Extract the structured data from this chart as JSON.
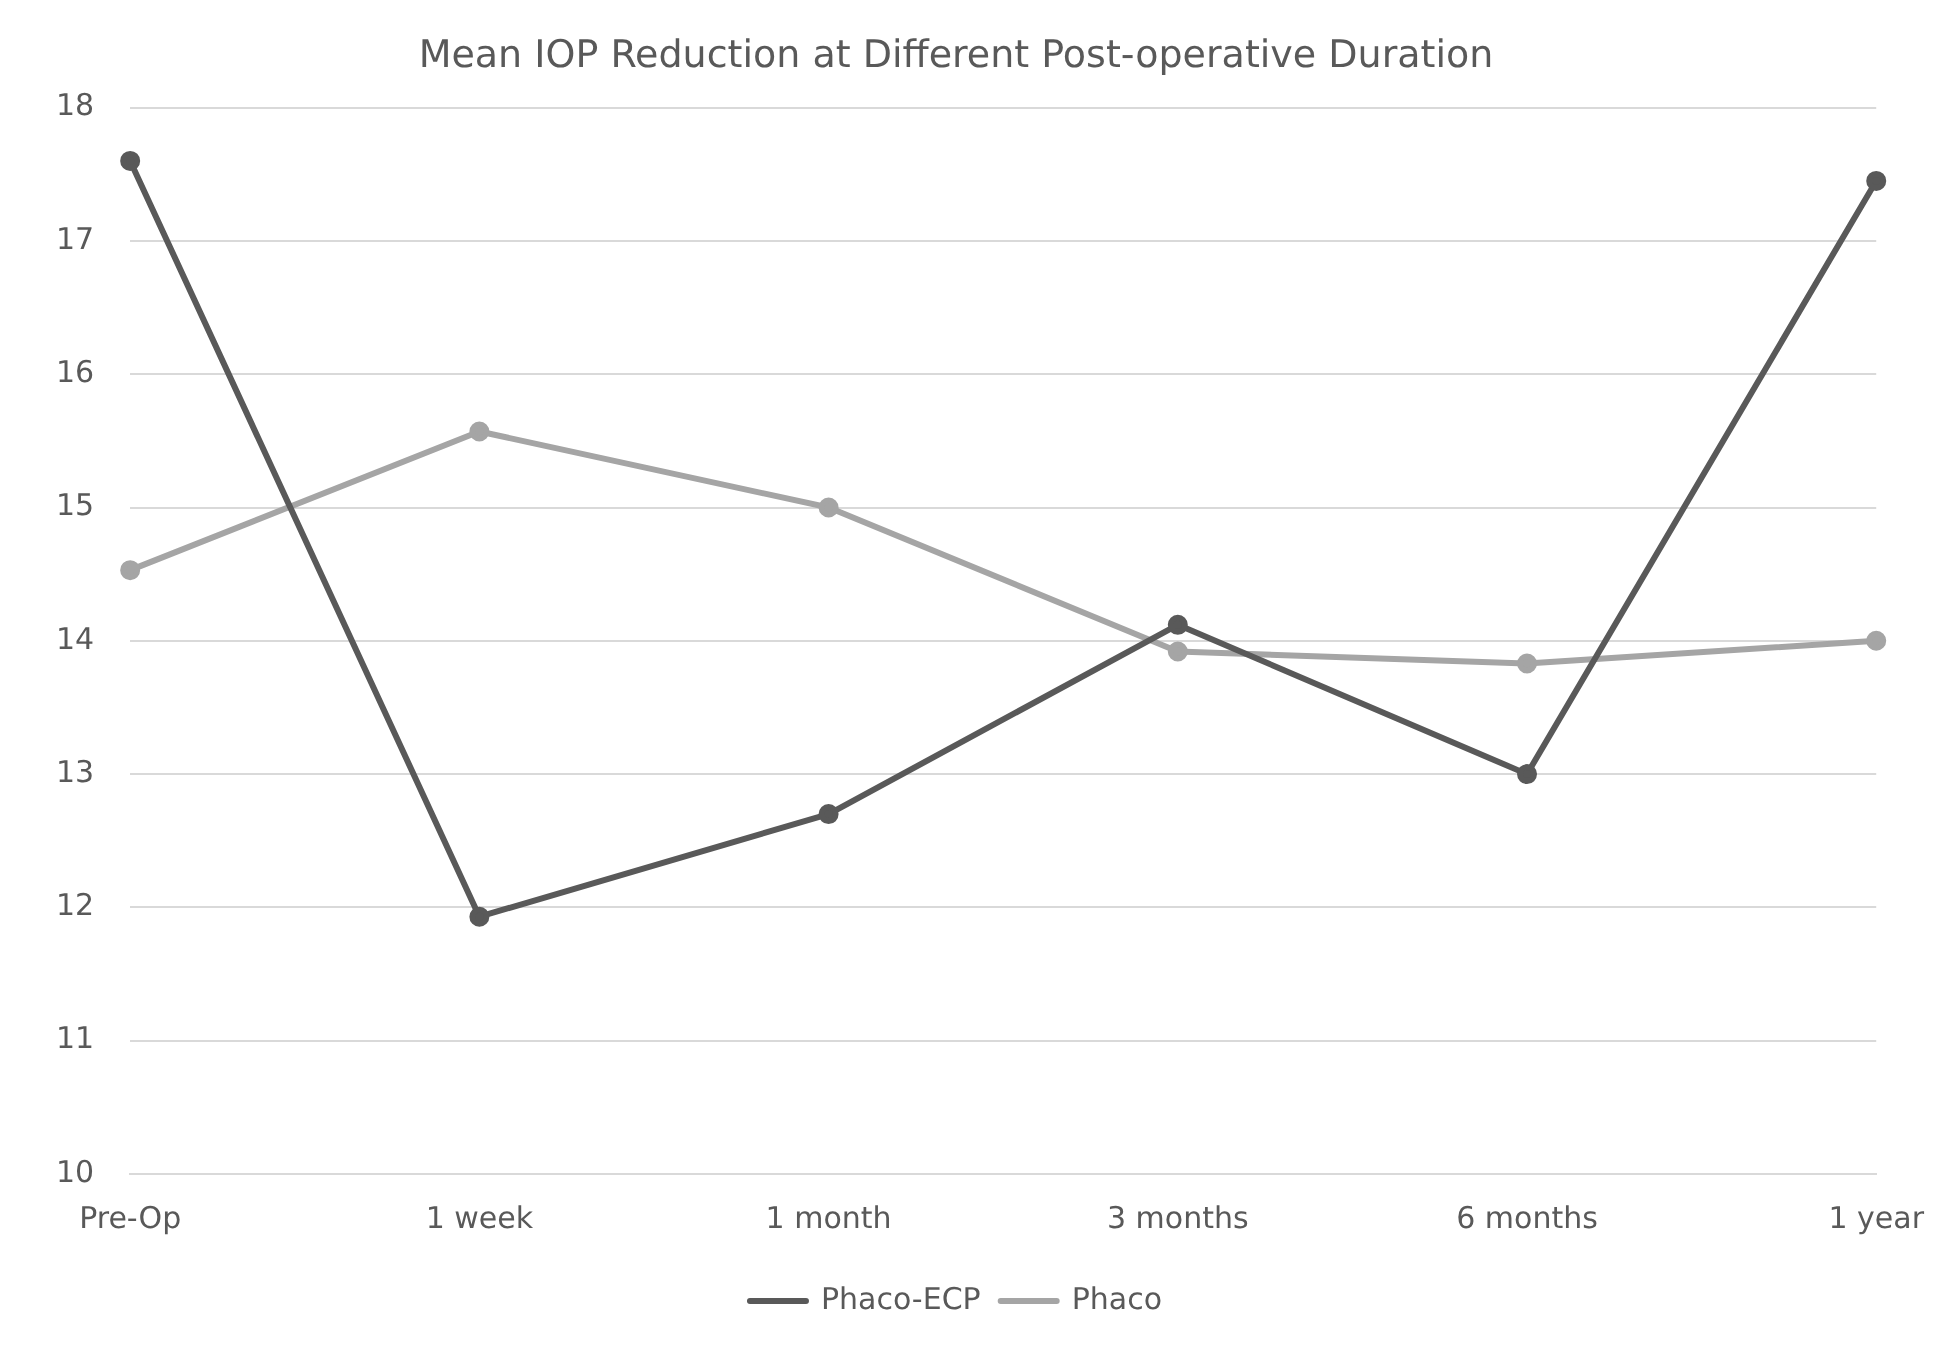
{
  "chart_data": {
    "type": "line",
    "title": "Mean IOP Reduction at Different Post-operative Duration",
    "categories": [
      "Pre-Op",
      "1 week",
      "1 month",
      "3 months",
      "6 months",
      "1 year"
    ],
    "series": [
      {
        "name": "Phaco-ECP",
        "color": "#595959",
        "values": [
          17.6,
          11.93,
          12.7,
          14.12,
          13.0,
          17.45
        ]
      },
      {
        "name": "Phaco",
        "color": "#a5a5a5",
        "values": [
          14.53,
          15.57,
          15.0,
          13.92,
          13.83,
          14.0
        ]
      }
    ],
    "ylim": [
      10,
      18
    ],
    "yticks": [
      10,
      11,
      12,
      13,
      14,
      15,
      16,
      17,
      18
    ],
    "grid": "y",
    "legend": "bottom",
    "marker": "circle",
    "line_style": "solid"
  }
}
